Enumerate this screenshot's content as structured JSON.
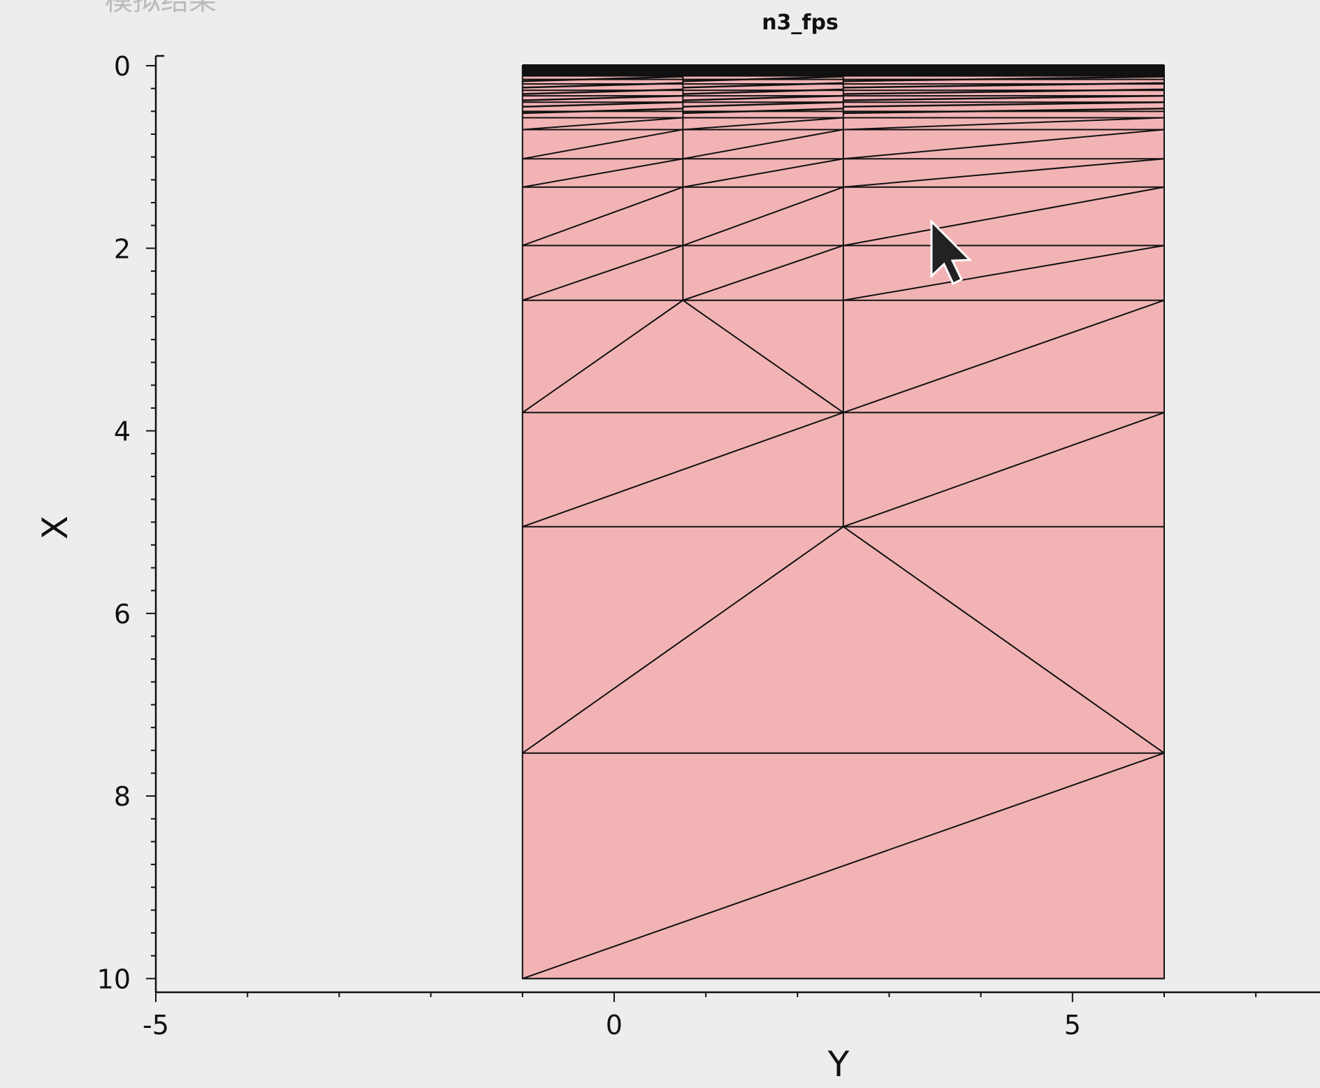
{
  "plot": {
    "title": "n3_fps",
    "corner_text": "模拟结果",
    "xlabel": "Y",
    "ylabel": "X"
  },
  "chart_data": {
    "type": "mesh",
    "title": "n3_fps",
    "horizontal_axis": {
      "label": "Y",
      "range": [
        -5,
        7.7
      ],
      "major_ticks": [
        -5,
        0,
        5
      ],
      "minor_step": 1
    },
    "vertical_axis": {
      "label": "X",
      "range": [
        0,
        10.15
      ],
      "major_ticks": [
        0,
        2,
        4,
        6,
        8,
        10
      ],
      "minor_step": 0.25,
      "direction": "down"
    },
    "region": {
      "y_range": [
        -1,
        6
      ],
      "x_range": [
        0,
        10
      ],
      "fill": "#f2b3b5",
      "edge": "#111111"
    },
    "mesh_lines": {
      "verticals": [
        {
          "y": 0.75,
          "x_range": [
            0,
            2.57
          ]
        },
        {
          "y": 2.5,
          "x_range": [
            0,
            5.05
          ]
        }
      ],
      "horizontals": [
        0,
        0.05,
        0.1,
        0.15,
        0.2,
        0.27,
        0.33,
        0.4,
        0.5,
        0.57,
        0.7,
        1.02,
        1.33,
        1.97,
        2.57,
        3.8,
        5.05,
        7.53,
        10
      ],
      "diagonals": [
        [
          [
            -1,
            0.7
          ],
          [
            0.75,
            0.57
          ]
        ],
        [
          [
            0.75,
            0.7
          ],
          [
            2.5,
            0.57
          ]
        ],
        [
          [
            2.5,
            0.7
          ],
          [
            6,
            0.57
          ]
        ],
        [
          [
            -1,
            1.02
          ],
          [
            0.75,
            0.7
          ]
        ],
        [
          [
            0.75,
            1.02
          ],
          [
            2.5,
            0.7
          ]
        ],
        [
          [
            2.5,
            1.02
          ],
          [
            6,
            0.7
          ]
        ],
        [
          [
            -1,
            1.33
          ],
          [
            0.75,
            1.02
          ]
        ],
        [
          [
            0.75,
            1.33
          ],
          [
            2.5,
            1.02
          ]
        ],
        [
          [
            2.5,
            1.33
          ],
          [
            6,
            1.02
          ]
        ],
        [
          [
            -1,
            1.97
          ],
          [
            0.75,
            1.33
          ]
        ],
        [
          [
            0.75,
            1.97
          ],
          [
            2.5,
            1.33
          ]
        ],
        [
          [
            2.5,
            1.97
          ],
          [
            6,
            1.33
          ]
        ],
        [
          [
            -1,
            2.57
          ],
          [
            0.75,
            1.97
          ]
        ],
        [
          [
            0.75,
            2.57
          ],
          [
            2.5,
            1.97
          ]
        ],
        [
          [
            2.5,
            2.57
          ],
          [
            6,
            1.97
          ]
        ],
        [
          [
            -1,
            3.8
          ],
          [
            0.75,
            2.57
          ]
        ],
        [
          [
            0.75,
            2.57
          ],
          [
            2.5,
            3.8
          ]
        ],
        [
          [
            2.5,
            3.8
          ],
          [
            6,
            2.57
          ]
        ],
        [
          [
            -1,
            5.05
          ],
          [
            2.5,
            3.8
          ]
        ],
        [
          [
            2.5,
            5.05
          ],
          [
            6,
            3.8
          ]
        ],
        [
          [
            -1,
            7.53
          ],
          [
            2.5,
            5.05
          ]
        ],
        [
          [
            2.5,
            5.05
          ],
          [
            6,
            7.53
          ]
        ],
        [
          [
            -1,
            10
          ],
          [
            6,
            7.53
          ]
        ]
      ]
    }
  }
}
